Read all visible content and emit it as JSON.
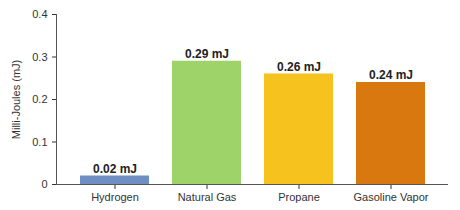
{
  "chart_data": {
    "type": "bar",
    "y_label": "Milli-Joules (mJ)",
    "categories": [
      "Hydrogen",
      "Natural Gas",
      "Propane",
      "Gasoline Vapor"
    ],
    "values": [
      0.02,
      0.29,
      0.26,
      0.24
    ],
    "value_labels": [
      "0.02 mJ",
      "0.29 mJ",
      "0.26 mJ",
      "0.24 mJ"
    ],
    "colors": [
      "#6f8fc4",
      "#9ed36a",
      "#f6c21e",
      "#d8780f"
    ],
    "ylim": [
      0,
      0.4
    ],
    "yticks": [
      0,
      0.1,
      0.2,
      0.3,
      0.4
    ],
    "grid": false,
    "data_labels": true
  }
}
